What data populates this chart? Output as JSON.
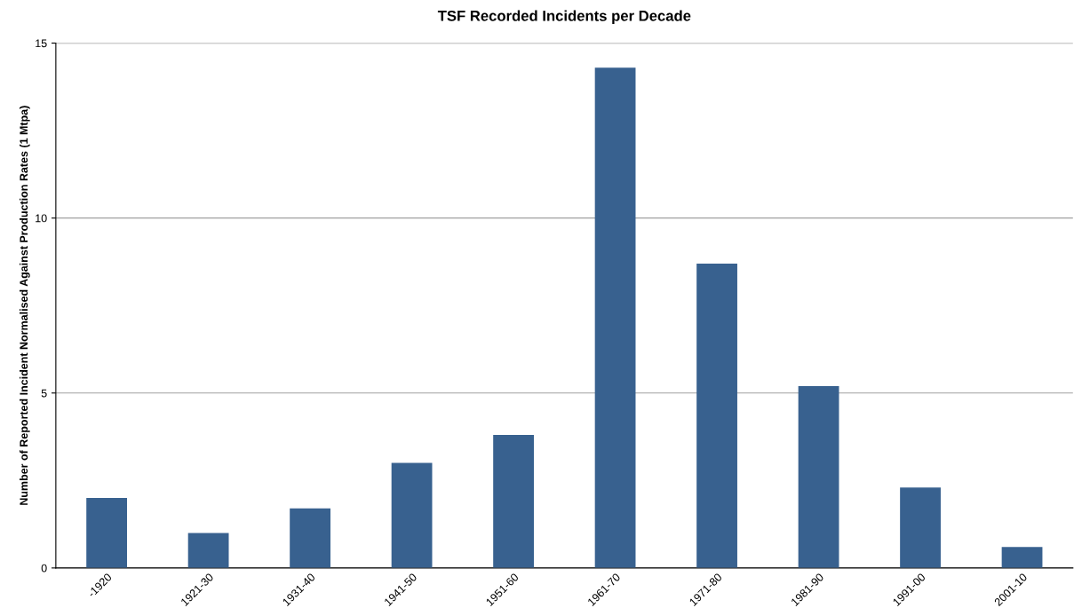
{
  "chart_data": {
    "type": "bar",
    "title": "TSF Recorded Incidents per Decade",
    "ylabel": "Number of Reported Incident Normalised Against Production Rates (1 Mtpa)",
    "categories": [
      "-1920",
      "1921-30",
      "1931-40",
      "1941-50",
      "1951-60",
      "1961-70",
      "1971-80",
      "1981-90",
      "1991-00",
      "2001-10"
    ],
    "values": [
      2.0,
      1.0,
      1.7,
      3.0,
      3.8,
      14.3,
      8.7,
      5.2,
      2.3,
      0.6
    ],
    "color": "#38618f",
    "ylim": [
      0,
      15
    ],
    "yticks": [
      0,
      5,
      10,
      15
    ],
    "grid": "y",
    "legend": false
  }
}
